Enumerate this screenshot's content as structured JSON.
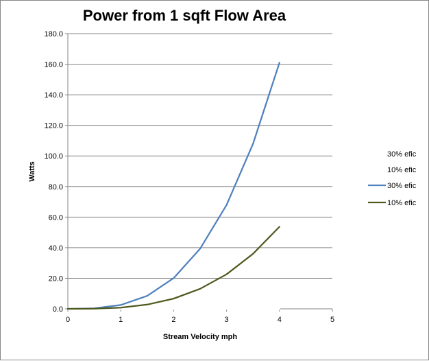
{
  "chart_data": {
    "type": "line",
    "title": "Power from 1 sqft Flow Area",
    "xlabel": "Stream Velocity mph",
    "ylabel": "Watts",
    "xlim": [
      0,
      5
    ],
    "ylim": [
      0,
      180
    ],
    "x_ticks": [
      "0",
      "1",
      "2",
      "3",
      "4",
      "5"
    ],
    "y_ticks": [
      "0.0",
      "20.0",
      "40.0",
      "60.0",
      "80.0",
      "100.0",
      "120.0",
      "140.0",
      "160.0",
      "180.0"
    ],
    "grid": "horizontal",
    "legend_position": "right",
    "x": [
      0,
      0.5,
      1,
      1.5,
      2,
      2.5,
      3,
      3.5,
      4
    ],
    "series": [
      {
        "name": "30% efic",
        "values": [
          0,
          0,
          0,
          0,
          0,
          0,
          0,
          0,
          0
        ],
        "color": "#ffffff"
      },
      {
        "name": "10% efic",
        "values": [
          0,
          0,
          0,
          0,
          0,
          0,
          0,
          0,
          0
        ],
        "color": "#ffffff"
      },
      {
        "name": "30% efic",
        "values": [
          0,
          0.3,
          2.5,
          8.5,
          20.1,
          39.3,
          67.9,
          107.9,
          161.0
        ],
        "color": "#4f81bd"
      },
      {
        "name": "10% efic",
        "values": [
          0,
          0.1,
          0.8,
          2.8,
          6.7,
          13.1,
          22.6,
          36.0,
          53.7
        ],
        "color": "#4f5a1e"
      }
    ]
  }
}
